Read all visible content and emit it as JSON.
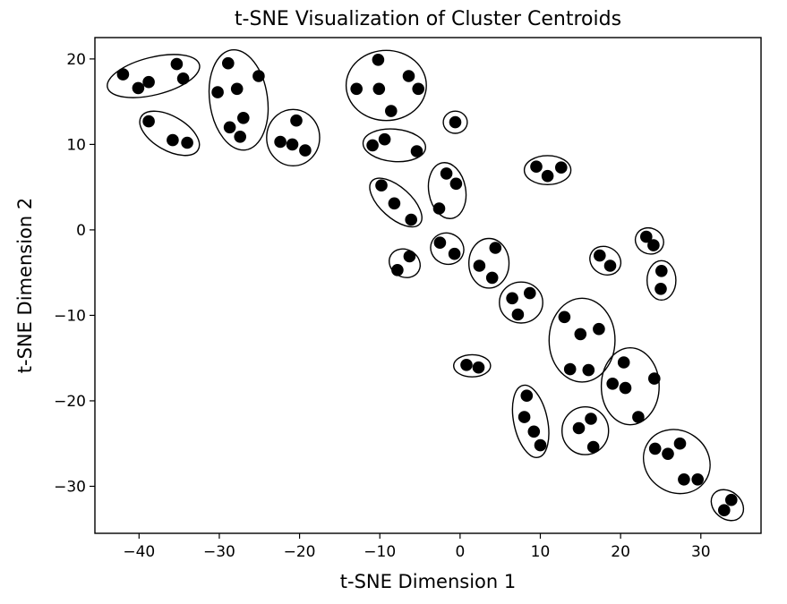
{
  "chart_data": {
    "type": "scatter",
    "title": "t-SNE Visualization of Cluster Centroids",
    "xlabel": "t-SNE Dimension 1",
    "ylabel": "t-SNE Dimension 2",
    "xlim": [
      -45.5,
      37.5
    ],
    "ylim": [
      -35.5,
      22.5
    ],
    "xticks": [
      {
        "value": -40,
        "label": "−40"
      },
      {
        "value": -30,
        "label": "−30"
      },
      {
        "value": -20,
        "label": "−20"
      },
      {
        "value": -10,
        "label": "−10"
      },
      {
        "value": 0,
        "label": "0"
      },
      {
        "value": 10,
        "label": "10"
      },
      {
        "value": 20,
        "label": "20"
      },
      {
        "value": 30,
        "label": "30"
      }
    ],
    "yticks": [
      {
        "value": -30,
        "label": "−30"
      },
      {
        "value": -20,
        "label": "−20"
      },
      {
        "value": -10,
        "label": "−10"
      },
      {
        "value": 0,
        "label": "0"
      },
      {
        "value": 10,
        "label": "10"
      },
      {
        "value": 20,
        "label": "20"
      }
    ],
    "grid": false,
    "point_color": "#000000",
    "clusters": [
      {
        "points": [
          [
            -42,
            18.2
          ],
          [
            -40.1,
            16.6
          ],
          [
            -38.8,
            17.3
          ],
          [
            -35.3,
            19.4
          ],
          [
            -34.5,
            17.7
          ]
        ],
        "ellipse": {
          "cx": -38.2,
          "cy": 18.0,
          "rx": 5.9,
          "ry": 2.2,
          "angle": 14
        }
      },
      {
        "points": [
          [
            -38.8,
            12.7
          ],
          [
            -35.8,
            10.5
          ],
          [
            -34,
            10.2
          ]
        ],
        "ellipse": {
          "cx": -36.2,
          "cy": 11.3,
          "rx": 4.1,
          "ry": 2.0,
          "angle": -30
        }
      },
      {
        "points": [
          [
            -30.2,
            16.1
          ],
          [
            -28.9,
            19.5
          ],
          [
            -28.7,
            12.0
          ],
          [
            -27.8,
            16.5
          ],
          [
            -27.4,
            10.9
          ],
          [
            -27,
            13.1
          ],
          [
            -25.1,
            18.0
          ]
        ],
        "ellipse": {
          "cx": -27.6,
          "cy": 15.2,
          "rx": 3.6,
          "ry": 5.9,
          "angle": 8
        }
      },
      {
        "points": [
          [
            -22.4,
            10.3
          ],
          [
            -20.9,
            10.0
          ],
          [
            -20.4,
            12.8
          ],
          [
            -19.3,
            9.3
          ]
        ],
        "ellipse": {
          "cx": -20.8,
          "cy": 10.8,
          "rx": 3.3,
          "ry": 3.3,
          "angle": 0
        }
      },
      {
        "points": [
          [
            -12.9,
            16.5
          ],
          [
            -10.2,
            19.9
          ],
          [
            -10.1,
            16.5
          ],
          [
            -8.6,
            13.9
          ],
          [
            -6.4,
            18.0
          ],
          [
            -5.2,
            16.5
          ]
        ],
        "ellipse": {
          "cx": -9.2,
          "cy": 16.9,
          "rx": 5.0,
          "ry": 4.1,
          "angle": 0
        }
      },
      {
        "points": [
          [
            -0.6,
            12.6
          ]
        ],
        "ellipse": {
          "cx": -0.6,
          "cy": 12.6,
          "rx": 1.5,
          "ry": 1.3,
          "angle": 0
        }
      },
      {
        "points": [
          [
            -10.9,
            9.9
          ],
          [
            -9.4,
            10.6
          ],
          [
            -5.4,
            9.2
          ]
        ],
        "ellipse": {
          "cx": -8.2,
          "cy": 9.9,
          "rx": 3.9,
          "ry": 1.9,
          "angle": -5
        }
      },
      {
        "points": [
          [
            -9.8,
            5.2
          ],
          [
            -8.2,
            3.1
          ],
          [
            -6.1,
            1.2
          ]
        ],
        "ellipse": {
          "cx": -8.0,
          "cy": 3.2,
          "rx": 4.0,
          "ry": 1.8,
          "angle": -42
        }
      },
      {
        "points": [
          [
            -2.6,
            2.5
          ],
          [
            -1.7,
            6.6
          ],
          [
            -0.5,
            5.4
          ]
        ],
        "ellipse": {
          "cx": -1.6,
          "cy": 4.6,
          "rx": 2.3,
          "ry": 3.3,
          "angle": 10
        }
      },
      {
        "points": [
          [
            9.5,
            7.4
          ],
          [
            10.9,
            6.3
          ],
          [
            12.6,
            7.3
          ]
        ],
        "ellipse": {
          "cx": 10.9,
          "cy": 7.0,
          "rx": 2.9,
          "ry": 1.7,
          "angle": 0
        }
      },
      {
        "points": [
          [
            -7.8,
            -4.7
          ],
          [
            -6.3,
            -3.1
          ]
        ],
        "ellipse": {
          "cx": -6.9,
          "cy": -3.9,
          "rx": 2.0,
          "ry": 1.6,
          "angle": -30
        }
      },
      {
        "points": [
          [
            -2.5,
            -1.5
          ],
          [
            -0.7,
            -2.8
          ]
        ],
        "ellipse": {
          "cx": -1.6,
          "cy": -2.2,
          "rx": 2.1,
          "ry": 1.8,
          "angle": -25
        }
      },
      {
        "points": [
          [
            2.4,
            -4.2
          ],
          [
            4.0,
            -5.6
          ],
          [
            4.4,
            -2.1
          ]
        ],
        "ellipse": {
          "cx": 3.6,
          "cy": -3.9,
          "rx": 2.5,
          "ry": 2.9,
          "angle": 0
        }
      },
      {
        "points": [
          [
            6.5,
            -8.0
          ],
          [
            7.2,
            -9.9
          ],
          [
            8.7,
            -7.4
          ]
        ],
        "ellipse": {
          "cx": 7.6,
          "cy": -8.5,
          "rx": 2.7,
          "ry": 2.4,
          "angle": 0
        }
      },
      {
        "points": [
          [
            17.4,
            -3.0
          ],
          [
            18.7,
            -4.2
          ]
        ],
        "ellipse": {
          "cx": 18.1,
          "cy": -3.6,
          "rx": 2.0,
          "ry": 1.6,
          "angle": -30
        }
      },
      {
        "points": [
          [
            23.2,
            -0.8
          ],
          [
            24.1,
            -1.8
          ]
        ],
        "ellipse": {
          "cx": 23.6,
          "cy": -1.3,
          "rx": 1.8,
          "ry": 1.5,
          "angle": -25
        }
      },
      {
        "points": [
          [
            25.1,
            -4.8
          ],
          [
            25,
            -6.9
          ]
        ],
        "ellipse": {
          "cx": 25.1,
          "cy": -5.9,
          "rx": 1.8,
          "ry": 2.3,
          "angle": 0
        }
      },
      {
        "points": [
          [
            13,
            -10.2
          ],
          [
            13.7,
            -16.3
          ],
          [
            15,
            -12.2
          ],
          [
            16,
            -16.4
          ],
          [
            17.3,
            -11.6
          ]
        ],
        "ellipse": {
          "cx": 15.2,
          "cy": -12.9,
          "rx": 4.1,
          "ry": 4.9,
          "angle": 0
        }
      },
      {
        "points": [
          [
            0.8,
            -15.8
          ],
          [
            2.3,
            -16.1
          ]
        ],
        "ellipse": {
          "cx": 1.5,
          "cy": -15.9,
          "rx": 2.3,
          "ry": 1.3,
          "angle": 0
        }
      },
      {
        "points": [
          [
            19,
            -18.0
          ],
          [
            20.4,
            -15.5
          ],
          [
            20.6,
            -18.5
          ],
          [
            22.2,
            -21.9
          ],
          [
            24.2,
            -17.4
          ]
        ],
        "ellipse": {
          "cx": 21.2,
          "cy": -18.3,
          "rx": 3.6,
          "ry": 4.5,
          "angle": 0
        }
      },
      {
        "points": [
          [
            8,
            -21.9
          ],
          [
            8.3,
            -19.4
          ],
          [
            9.2,
            -23.6
          ],
          [
            10,
            -25.2
          ]
        ],
        "ellipse": {
          "cx": 8.8,
          "cy": -22.4,
          "rx": 2.1,
          "ry": 4.3,
          "angle": 12
        }
      },
      {
        "points": [
          [
            14.8,
            -23.2
          ],
          [
            16.3,
            -22.1
          ],
          [
            16.6,
            -25.4
          ]
        ],
        "ellipse": {
          "cx": 15.6,
          "cy": -23.5,
          "rx": 2.9,
          "ry": 2.8,
          "angle": 0
        }
      },
      {
        "points": [
          [
            24.3,
            -25.6
          ],
          [
            25.9,
            -26.2
          ],
          [
            27.4,
            -25.0
          ],
          [
            27.9,
            -29.2
          ],
          [
            29.6,
            -29.2
          ]
        ],
        "ellipse": {
          "cx": 27.0,
          "cy": -27.1,
          "rx": 4.3,
          "ry": 3.6,
          "angle": -35
        }
      },
      {
        "points": [
          [
            32.9,
            -32.8
          ],
          [
            33.8,
            -31.6
          ]
        ],
        "ellipse": {
          "cx": 33.3,
          "cy": -32.2,
          "rx": 2.2,
          "ry": 1.6,
          "angle": -40
        }
      }
    ]
  }
}
